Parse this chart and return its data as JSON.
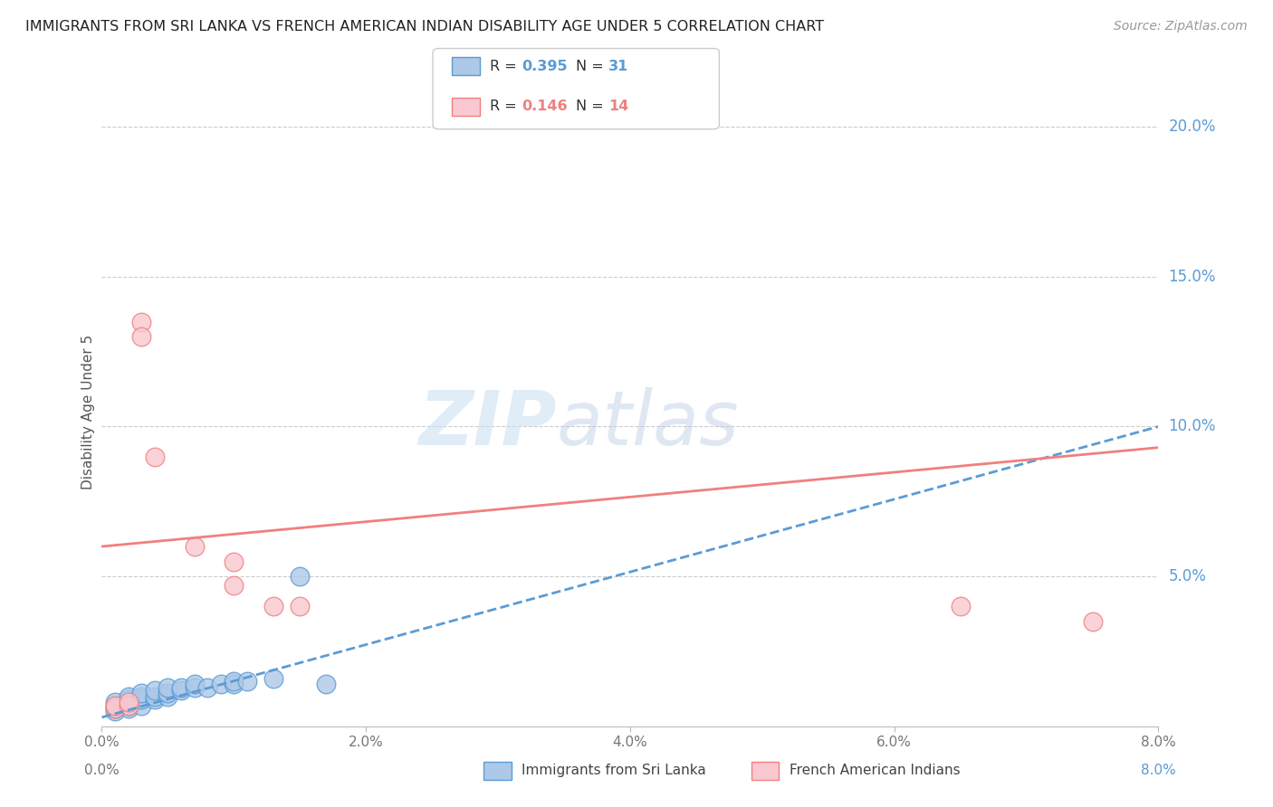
{
  "title": "IMMIGRANTS FROM SRI LANKA VS FRENCH AMERICAN INDIAN DISABILITY AGE UNDER 5 CORRELATION CHART",
  "source": "Source: ZipAtlas.com",
  "ylabel": "Disability Age Under 5",
  "xlim": [
    0.0,
    0.08
  ],
  "ylim": [
    0.0,
    0.21
  ],
  "blue_scatter": [
    [
      0.001,
      0.005
    ],
    [
      0.001,
      0.006
    ],
    [
      0.001,
      0.007
    ],
    [
      0.001,
      0.008
    ],
    [
      0.002,
      0.006
    ],
    [
      0.002,
      0.007
    ],
    [
      0.002,
      0.008
    ],
    [
      0.002,
      0.009
    ],
    [
      0.002,
      0.01
    ],
    [
      0.003,
      0.007
    ],
    [
      0.003,
      0.009
    ],
    [
      0.003,
      0.01
    ],
    [
      0.003,
      0.011
    ],
    [
      0.004,
      0.009
    ],
    [
      0.004,
      0.01
    ],
    [
      0.004,
      0.012
    ],
    [
      0.005,
      0.01
    ],
    [
      0.005,
      0.011
    ],
    [
      0.005,
      0.013
    ],
    [
      0.006,
      0.012
    ],
    [
      0.006,
      0.013
    ],
    [
      0.007,
      0.013
    ],
    [
      0.007,
      0.014
    ],
    [
      0.008,
      0.013
    ],
    [
      0.009,
      0.014
    ],
    [
      0.01,
      0.014
    ],
    [
      0.01,
      0.015
    ],
    [
      0.011,
      0.015
    ],
    [
      0.013,
      0.016
    ],
    [
      0.015,
      0.05
    ],
    [
      0.017,
      0.014
    ]
  ],
  "pink_scatter": [
    [
      0.001,
      0.006
    ],
    [
      0.001,
      0.007
    ],
    [
      0.002,
      0.007
    ],
    [
      0.002,
      0.008
    ],
    [
      0.003,
      0.135
    ],
    [
      0.003,
      0.13
    ],
    [
      0.004,
      0.09
    ],
    [
      0.007,
      0.06
    ],
    [
      0.01,
      0.055
    ],
    [
      0.01,
      0.047
    ],
    [
      0.013,
      0.04
    ],
    [
      0.015,
      0.04
    ],
    [
      0.065,
      0.04
    ],
    [
      0.075,
      0.035
    ]
  ],
  "blue_line_x": [
    0.0,
    0.08
  ],
  "blue_line_y": [
    0.003,
    0.1
  ],
  "pink_line_x": [
    0.0,
    0.08
  ],
  "pink_line_y": [
    0.06,
    0.093
  ],
  "watermark_zip": "ZIP",
  "watermark_atlas": "atlas",
  "blue_color": "#5b9bd5",
  "pink_color": "#f08080",
  "blue_fill": "#adc8e8",
  "pink_fill": "#f9c8d0",
  "right_label_color": "#5b9bd5",
  "grid_color": "#cccccc",
  "title_fontsize": 11.5,
  "source_fontsize": 10,
  "axis_label_color": "#888888"
}
